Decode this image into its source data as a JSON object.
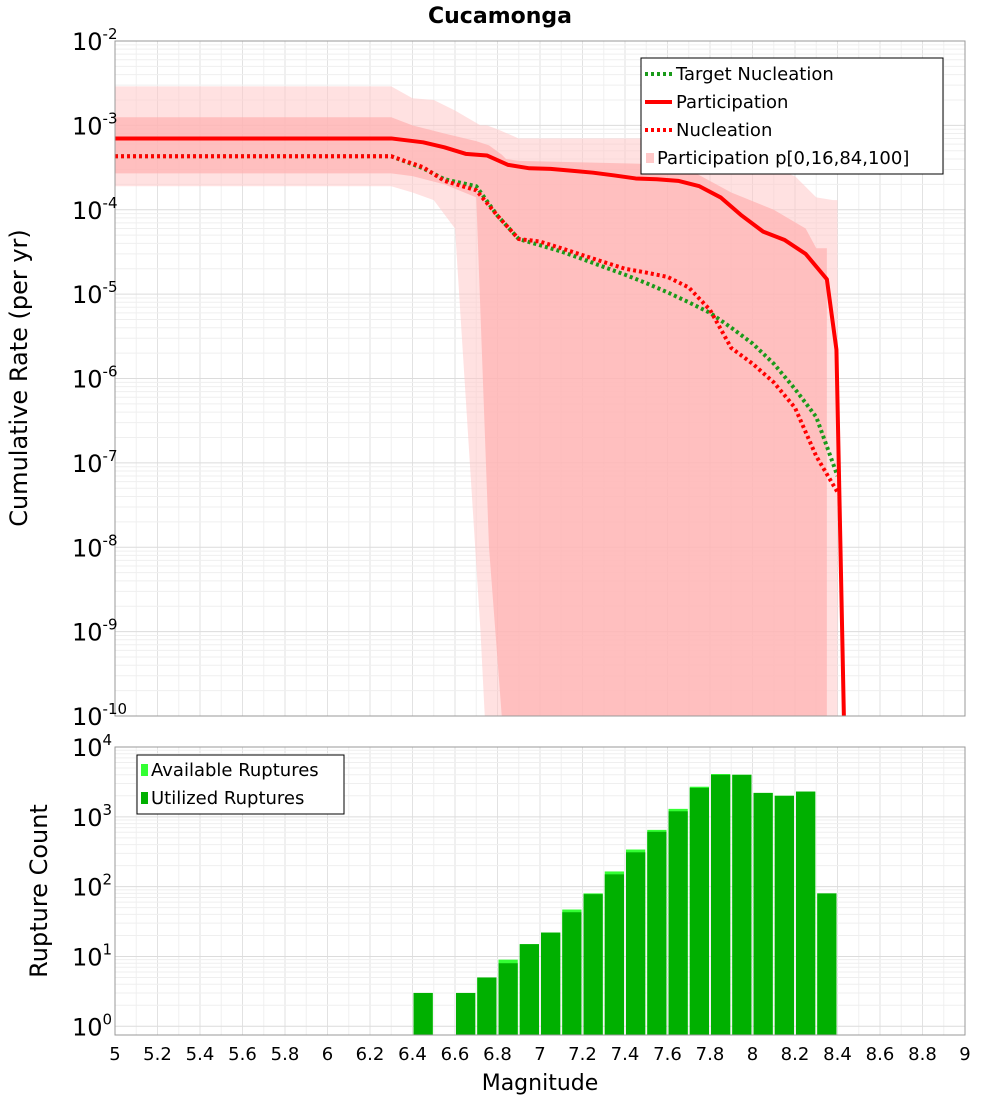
{
  "chart_data": [
    {
      "type": "line",
      "title": "Cucamonga",
      "xlabel": "",
      "ylabel": "Cumulative Rate (per yr)",
      "xlim": [
        5,
        9
      ],
      "ylim": [
        1e-10,
        0.01
      ],
      "y_scale": "log",
      "grid": true,
      "legend_position": "top-right",
      "y_tick_labels": [
        {
          "base": "10",
          "exp": "-10",
          "value": 1e-10
        },
        {
          "base": "10",
          "exp": "-9",
          "value": 1e-09
        },
        {
          "base": "10",
          "exp": "-8",
          "value": 1e-08
        },
        {
          "base": "10",
          "exp": "-7",
          "value": 1e-07
        },
        {
          "base": "10",
          "exp": "-6",
          "value": 1e-06
        },
        {
          "base": "10",
          "exp": "-5",
          "value": 1e-05
        },
        {
          "base": "10",
          "exp": "-4",
          "value": 0.0001
        },
        {
          "base": "10",
          "exp": "-3",
          "value": 0.001
        },
        {
          "base": "10",
          "exp": "-2",
          "value": 0.01
        }
      ],
      "series": [
        {
          "name": "Target Nucleation",
          "color": "#1a9a1a",
          "style": "dotted",
          "x": [
            5.0,
            6.0,
            6.3,
            6.45,
            6.55,
            6.7,
            6.8,
            6.9,
            7.0,
            7.1,
            7.2,
            7.3,
            7.4,
            7.5,
            7.6,
            7.7,
            7.8,
            7.9,
            8.0,
            8.1,
            8.2,
            8.3,
            8.4
          ],
          "y": [
            0.00043,
            0.00043,
            0.00043,
            0.00031,
            0.00023,
            0.00019,
            8.5e-05,
            4.5e-05,
            3.8e-05,
            3.2e-05,
            2.6e-05,
            2.1e-05,
            1.7e-05,
            1.35e-05,
            1.05e-05,
            8e-06,
            6e-06,
            4e-06,
            2.6e-06,
            1.5e-06,
            7.5e-07,
            3.5e-07,
            7e-08
          ]
        },
        {
          "name": "Participation",
          "color": "#ff0000",
          "style": "solid",
          "x": [
            5.0,
            6.0,
            6.3,
            6.45,
            6.55,
            6.65,
            6.75,
            6.85,
            6.95,
            7.05,
            7.15,
            7.25,
            7.35,
            7.45,
            7.55,
            7.65,
            7.75,
            7.85,
            7.95,
            8.05,
            8.15,
            8.25,
            8.35,
            8.395,
            8.43
          ],
          "y": [
            0.0007,
            0.0007,
            0.0007,
            0.00063,
            0.00055,
            0.00046,
            0.00044,
            0.00034,
            0.00031,
            0.000305,
            0.00029,
            0.000275,
            0.000255,
            0.000235,
            0.00023,
            0.00022,
            0.00019,
            0.00014,
            8.5e-05,
            5.5e-05,
            4.4e-05,
            3e-05,
            1.5e-05,
            2.2e-06,
            1e-10
          ]
        },
        {
          "name": "Nucleation",
          "color": "#ff0000",
          "style": "dotted",
          "x": [
            5.0,
            6.0,
            6.3,
            6.45,
            6.55,
            6.7,
            6.8,
            6.9,
            7.0,
            7.1,
            7.2,
            7.3,
            7.4,
            7.5,
            7.6,
            7.7,
            7.8,
            7.9,
            8.0,
            8.1,
            8.2,
            8.3,
            8.4
          ],
          "y": [
            0.00043,
            0.00043,
            0.00043,
            0.00032,
            0.00022,
            0.00017,
            8.5e-05,
            4.5e-05,
            4.2e-05,
            3.5e-05,
            2.9e-05,
            2.4e-05,
            2e-05,
            1.8e-05,
            1.6e-05,
            1.2e-05,
            6.5e-06,
            2.3e-06,
            1.5e-06,
            9e-07,
            4.5e-07,
            1.2e-07,
            4.5e-08
          ]
        }
      ],
      "bands": [
        {
          "name": "Participation p[0,16,84,100]",
          "color": "#ffc8c8",
          "opacity": 0.55,
          "x": [
            5.0,
            6.3,
            6.4,
            6.5,
            6.6,
            6.72,
            6.74,
            6.75,
            6.8,
            6.9,
            7.5,
            7.75,
            8.0,
            8.2,
            8.3,
            8.38,
            8.4
          ],
          "upper": [
            0.0029,
            0.0029,
            0.0021,
            0.002,
            0.0015,
            0.001,
            0.001,
            0.001,
            0.0009,
            0.0007,
            0.0007,
            0.0007,
            0.00038,
            0.00025,
            0.00014,
            0.00013,
            0.00013
          ],
          "lower": [
            0.00019,
            0.00019,
            0.00016,
            0.00013,
            6e-05,
            1e-09,
            1e-10,
            1e-10,
            1e-10,
            1e-10,
            1e-10,
            1e-10,
            1e-10,
            1e-10,
            1e-10,
            1e-10,
            1e-10
          ]
        },
        {
          "name": "Participation p16-84",
          "color": "#ffb0b0",
          "opacity": 0.7,
          "x": [
            5.0,
            6.3,
            6.4,
            6.55,
            6.7,
            6.76,
            6.82,
            6.84,
            6.9,
            7.5,
            7.7,
            7.9,
            8.1,
            8.25,
            8.3,
            8.33,
            8.35
          ],
          "upper": [
            0.00125,
            0.00125,
            0.001,
            0.0008,
            0.00065,
            0.00058,
            0.00045,
            0.0004,
            0.00038,
            0.00035,
            0.0003,
            0.00016,
            0.0001,
            6e-05,
            3.5e-05,
            3.5e-05,
            3.5e-05
          ],
          "lower": [
            0.00027,
            0.00027,
            0.00025,
            0.0002,
            0.00014,
            1e-08,
            1e-10,
            1e-10,
            1e-10,
            1e-10,
            1e-10,
            1e-10,
            1e-10,
            1e-10,
            1e-10,
            1e-10,
            1e-10
          ]
        }
      ],
      "legend": [
        "Target Nucleation",
        "Participation",
        "Nucleation",
        "Participation p[0,16,84,100]"
      ]
    },
    {
      "type": "bar",
      "xlabel": "Magnitude",
      "ylabel": "Rupture Count",
      "xlim": [
        5,
        9
      ],
      "ylim": [
        0.75,
        10000
      ],
      "y_scale": "log",
      "grid": true,
      "legend_position": "top-left",
      "bin_width": 0.1,
      "x_tick_labels": [
        "5",
        "5.2",
        "5.4",
        "5.6",
        "5.8",
        "6",
        "6.2",
        "6.4",
        "6.6",
        "6.8",
        "7",
        "7.2",
        "7.4",
        "7.6",
        "7.8",
        "8",
        "8.2",
        "8.4",
        "8.6",
        "8.8",
        "9"
      ],
      "y_tick_labels": [
        {
          "base": "10",
          "exp": "0",
          "value": 1
        },
        {
          "base": "10",
          "exp": "1",
          "value": 10
        },
        {
          "base": "10",
          "exp": "2",
          "value": 100
        },
        {
          "base": "10",
          "exp": "3",
          "value": 1000
        },
        {
          "base": "10",
          "exp": "4",
          "value": 10000
        }
      ],
      "categories": [
        6.45,
        6.65,
        6.75,
        6.85,
        6.95,
        7.05,
        7.15,
        7.25,
        7.35,
        7.45,
        7.55,
        7.65,
        7.75,
        7.85,
        7.95,
        8.05,
        8.15,
        8.25,
        8.35
      ],
      "series": [
        {
          "name": "Available Ruptures",
          "color": "#33ff33",
          "values": [
            3,
            3,
            5,
            9,
            15,
            22,
            47,
            80,
            165,
            340,
            650,
            1300,
            2700,
            4100,
            4000,
            2200,
            2000,
            2300,
            80
          ]
        },
        {
          "name": "Utilized Ruptures",
          "color": "#00b000",
          "values": [
            3,
            3,
            5,
            8,
            15,
            22,
            43,
            78,
            150,
            310,
            610,
            1200,
            2600,
            4000,
            4000,
            2200,
            2000,
            2300,
            80
          ]
        }
      ],
      "legend": [
        "Available Ruptures",
        "Utilized Ruptures"
      ]
    }
  ]
}
